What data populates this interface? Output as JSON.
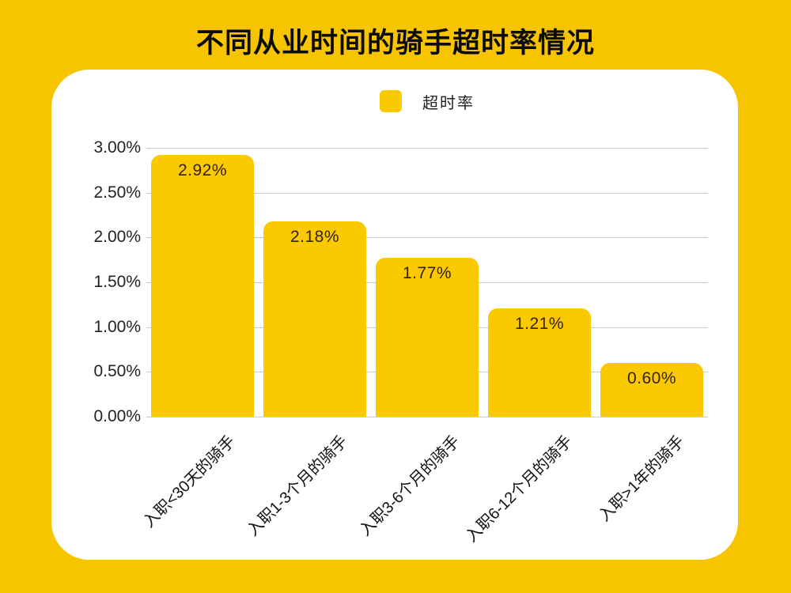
{
  "page": {
    "background_color": "#F7C500"
  },
  "header": {
    "title": "不同从业时间的骑手超时率情况"
  },
  "legend": {
    "label": "超时率",
    "swatch_color": "#FBC900"
  },
  "colors": {
    "card_background": "#FFFFFF",
    "bar": "#FBC900",
    "bar_label": "#35230A",
    "gridline": "#CBCBCB",
    "axis_text": "#222222",
    "title_text": "#0B0B0B"
  },
  "chart_data": {
    "type": "bar",
    "title": "不同从业时间的骑手超时率情况",
    "categories": [
      "入职<30天的骑手",
      "入职1-3个月的骑手",
      "入职3-6个月的骑手",
      "入职6-12个月的骑手",
      "入职>1年的骑手"
    ],
    "series": [
      {
        "name": "超时率",
        "values": [
          2.92,
          2.18,
          1.77,
          1.21,
          0.6
        ]
      }
    ],
    "value_labels": [
      "2.92%",
      "2.18%",
      "1.77%",
      "1.21%",
      "0.60%"
    ],
    "xlabel": "",
    "ylabel": "",
    "ylim": [
      0,
      3.0
    ],
    "ytick_step": 0.5,
    "ytick_labels": [
      "0.00%",
      "0.50%",
      "1.00%",
      "1.50%",
      "2.00%",
      "2.50%",
      "3.00%"
    ],
    "grid": true,
    "legend_position": "top-center"
  }
}
